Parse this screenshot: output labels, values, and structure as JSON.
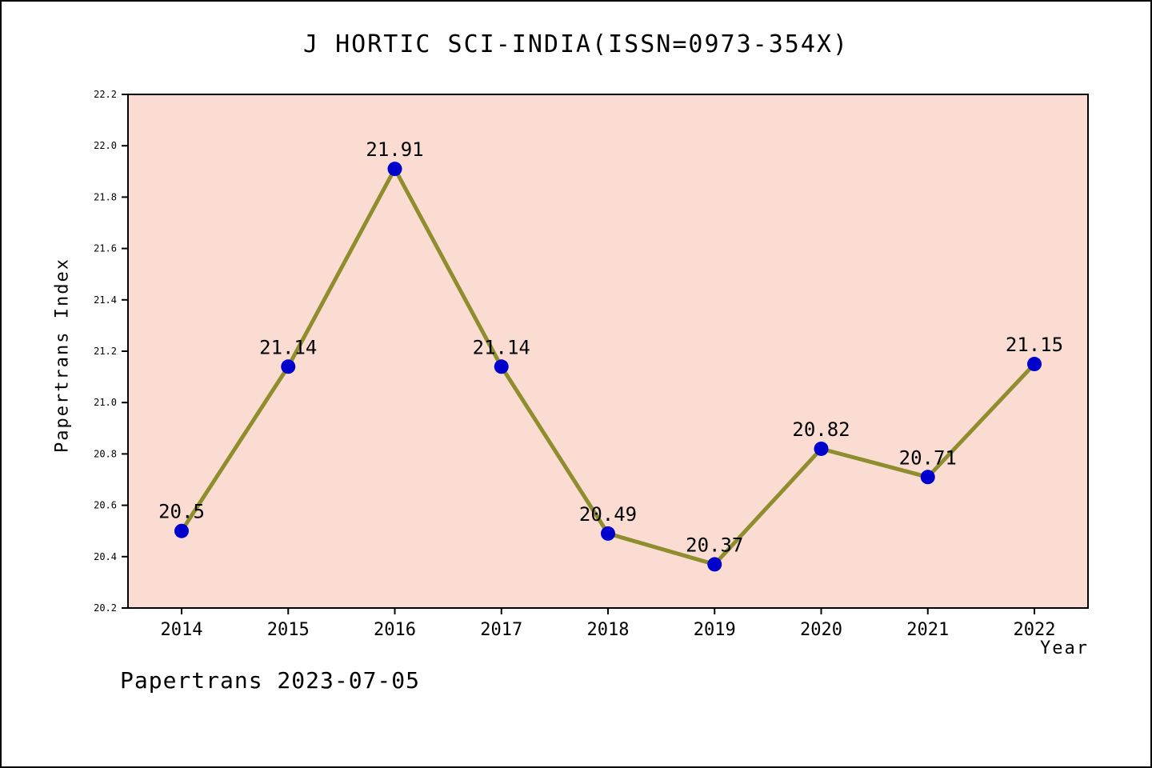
{
  "title": "J HORTIC SCI-INDIA(ISSN=0973-354X)",
  "footer": "Papertrans 2023-07-05",
  "chart_data": {
    "type": "line",
    "title": "J HORTIC SCI-INDIA(ISSN=0973-354X)",
    "xlabel": "Year",
    "ylabel": "Papertrans Index",
    "x": [
      2014,
      2015,
      2016,
      2017,
      2018,
      2019,
      2020,
      2021,
      2022
    ],
    "values": [
      20.5,
      21.14,
      21.91,
      21.14,
      20.49,
      20.37,
      20.82,
      20.71,
      21.15
    ],
    "labels": [
      "20.5",
      "21.14",
      "21.91",
      "21.14",
      "20.49",
      "20.37",
      "20.82",
      "20.71",
      "21.15"
    ],
    "ylim": [
      20.2,
      22.2
    ],
    "yticks": [
      20.2,
      20.4,
      20.6,
      20.8,
      21.0,
      21.2,
      21.4,
      21.6,
      21.8,
      22.0,
      22.2
    ],
    "grid": false,
    "legend": "none",
    "line_color": "#8e8e2e",
    "marker_color": "#0000cd",
    "plot_bg": "#fbdcd3",
    "axis_color": "#000000"
  }
}
